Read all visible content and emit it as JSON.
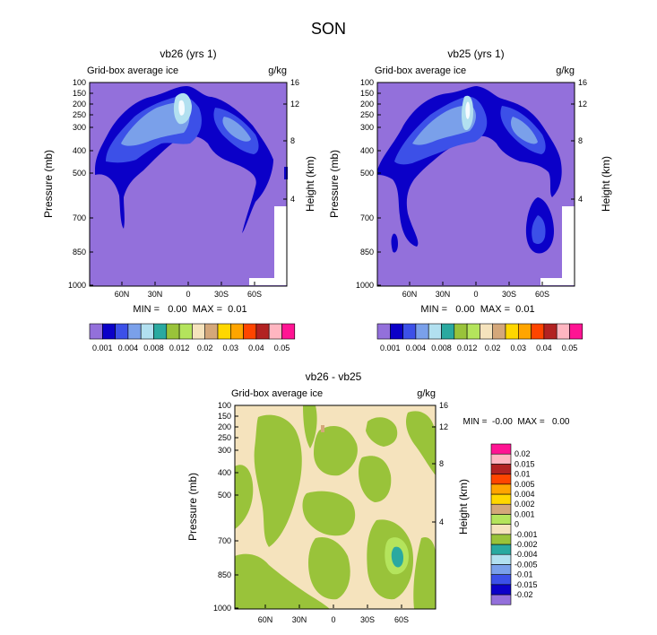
{
  "page_title": "SON",
  "colors": {
    "background_field": "#9370db",
    "lev1": "#0b00c8",
    "lev2": "#3c50e8",
    "lev3": "#7aa0ea",
    "lev4": "#c9f0f8",
    "diff_positive": "#f5e3bd",
    "diff_negative": "#99c33a",
    "diff_neg2": "#2aa9a0"
  },
  "icons": {
    "colorbar": "colorbar-icon"
  },
  "chart_data": [
    {
      "type": "heatmap",
      "title": "vb26 (yrs 1)",
      "subtitle_left": "Grid-box average ice",
      "subtitle_right": "g/kg",
      "ylabel": "Pressure (mb)",
      "ylabel_right": "Height (km)",
      "y_ticks": [
        "100",
        "150",
        "200",
        "250",
        "300",
        "400",
        "500",
        "700",
        "850",
        "1000"
      ],
      "y_ticks_right": [
        "16",
        "12",
        "8",
        "4"
      ],
      "x_ticks": [
        "60N",
        "30N",
        "0",
        "30S",
        "60S"
      ],
      "stats": "MIN =   0.00  MAX =  0.01",
      "levels": [
        0.001,
        0.002,
        0.004,
        0.006,
        0.008,
        0.01,
        0.012,
        0.015,
        0.02,
        0.025,
        0.03,
        0.035,
        0.04,
        0.045,
        0.05
      ],
      "level_labels": [
        "0.001",
        "0.004",
        "0.008",
        "0.012",
        "0.02",
        "0.03",
        "0.04",
        "0.05"
      ],
      "colors": [
        "#9370db",
        "#0b00c8",
        "#3c50e8",
        "#7aa0ea",
        "#b2e0f0",
        "#2aa9a0",
        "#99c33a",
        "#b4e45c",
        "#f5e3bd",
        "#d4a77a",
        "#ffd700",
        "#ffa500",
        "#ff4500",
        "#b22222",
        "#ffb6c1",
        "#ff1493"
      ]
    },
    {
      "type": "heatmap",
      "title": "vb25 (yrs 1)",
      "subtitle_left": "Grid-box average ice",
      "subtitle_right": "g/kg",
      "ylabel": "Pressure (mb)",
      "ylabel_right": "Height (km)",
      "y_ticks": [
        "100",
        "150",
        "200",
        "250",
        "300",
        "400",
        "500",
        "700",
        "850",
        "1000"
      ],
      "y_ticks_right": [
        "16",
        "12",
        "8",
        "4"
      ],
      "x_ticks": [
        "60N",
        "30N",
        "0",
        "30S",
        "60S"
      ],
      "stats": "MIN =   0.00  MAX =  0.01",
      "levels": [
        0.001,
        0.002,
        0.004,
        0.006,
        0.008,
        0.01,
        0.012,
        0.015,
        0.02,
        0.025,
        0.03,
        0.035,
        0.04,
        0.045,
        0.05
      ],
      "level_labels": [
        "0.001",
        "0.004",
        "0.008",
        "0.012",
        "0.02",
        "0.03",
        "0.04",
        "0.05"
      ],
      "colors": [
        "#9370db",
        "#0b00c8",
        "#3c50e8",
        "#7aa0ea",
        "#b2e0f0",
        "#2aa9a0",
        "#99c33a",
        "#b4e45c",
        "#f5e3bd",
        "#d4a77a",
        "#ffd700",
        "#ffa500",
        "#ff4500",
        "#b22222",
        "#ffb6c1",
        "#ff1493"
      ]
    },
    {
      "type": "heatmap",
      "title": "vb26 - vb25",
      "subtitle_left": "Grid-box average ice",
      "subtitle_right": "g/kg",
      "ylabel": "Pressure (mb)",
      "ylabel_right": "Height (km)",
      "y_ticks": [
        "100",
        "150",
        "200",
        "250",
        "300",
        "400",
        "500",
        "700",
        "850",
        "1000"
      ],
      "y_ticks_right": [
        "16",
        "12",
        "8",
        "4"
      ],
      "x_ticks": [
        "60N",
        "30N",
        "0",
        "30S",
        "60S"
      ],
      "stats": "MIN =  -0.00  MAX =   0.00",
      "levels": [
        -0.02,
        -0.015,
        -0.01,
        -0.005,
        -0.004,
        -0.002,
        -0.001,
        0,
        0.001,
        0.002,
        0.004,
        0.005,
        0.01,
        0.015,
        0.02
      ],
      "level_labels": [
        "0.02",
        "0.015",
        "0.01",
        "0.005",
        "0.004",
        "0.002",
        "0.001",
        "0",
        "-0.001",
        "-0.002",
        "-0.004",
        "-0.005",
        "-0.01",
        "-0.015",
        "-0.02"
      ],
      "colors": [
        "#9370db",
        "#0b00c8",
        "#3c50e8",
        "#7aa0ea",
        "#b2e0f0",
        "#2aa9a0",
        "#99c33a",
        "#f5e3bd",
        "#b4e45c",
        "#d4a77a",
        "#ffd700",
        "#ffa500",
        "#ff4500",
        "#b22222",
        "#ffb6c1",
        "#ff1493"
      ]
    }
  ]
}
